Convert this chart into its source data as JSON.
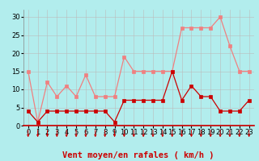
{
  "x": [
    0,
    1,
    2,
    3,
    4,
    5,
    6,
    7,
    8,
    9,
    10,
    11,
    12,
    13,
    14,
    15,
    16,
    17,
    18,
    19,
    20,
    21,
    22,
    23
  ],
  "rafales": [
    15,
    1,
    12,
    8,
    11,
    8,
    14,
    8,
    8,
    8,
    19,
    15,
    15,
    15,
    15,
    15,
    27,
    27,
    27,
    27,
    30,
    22,
    15,
    15
  ],
  "moyen": [
    4,
    1,
    4,
    4,
    4,
    4,
    4,
    4,
    4,
    1,
    7,
    7,
    7,
    7,
    7,
    15,
    7,
    11,
    8,
    8,
    4,
    4,
    4,
    7
  ],
  "line_color_rafales": "#f08080",
  "line_color_moyen": "#cc0000",
  "bg_color": "#b2eded",
  "grid_color": "#bbbbbb",
  "xlabel": "Vent moyen/en rafales ( km/h )",
  "xlabel_color": "#cc0000",
  "xlabel_fontsize": 7.5,
  "ylim": [
    0,
    32
  ],
  "yticks": [
    0,
    5,
    10,
    15,
    20,
    25,
    30
  ],
  "xticks": [
    0,
    1,
    2,
    3,
    4,
    5,
    6,
    7,
    8,
    9,
    10,
    11,
    12,
    13,
    14,
    15,
    16,
    17,
    18,
    19,
    20,
    21,
    22,
    23
  ],
  "tick_fontsize": 6,
  "arrow_color": "#cc0000",
  "marker_size": 2.5
}
